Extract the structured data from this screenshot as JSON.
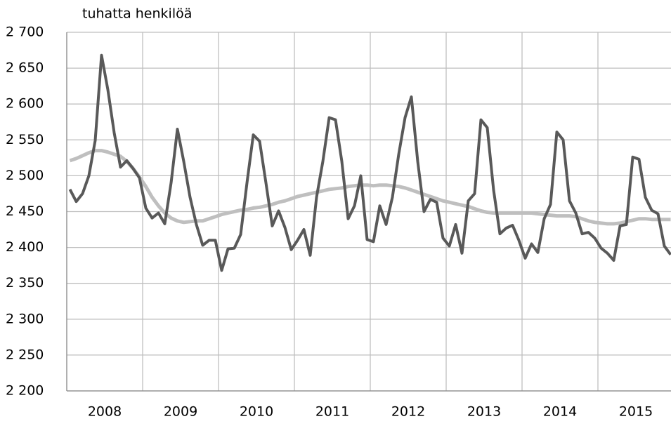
{
  "chart_data": {
    "type": "line",
    "title": "tuhatta henkilöä",
    "categories": [
      null,
      null,
      null,
      null,
      null,
      null,
      "2008",
      null,
      null,
      null,
      null,
      null,
      null,
      null,
      null,
      null,
      null,
      null,
      "2009",
      null,
      null,
      null,
      null,
      null,
      null,
      null,
      null,
      null,
      null,
      null,
      "2010",
      null,
      null,
      null,
      null,
      null,
      null,
      null,
      null,
      null,
      null,
      null,
      "2011",
      null,
      null,
      null,
      null,
      null,
      null,
      null,
      null,
      null,
      null,
      null,
      "2012",
      null,
      null,
      null,
      null,
      null,
      null,
      null,
      null,
      null,
      null,
      null,
      "2013",
      null,
      null,
      null,
      null,
      null,
      null,
      null,
      null,
      null,
      null,
      null,
      "2014",
      null,
      null,
      null,
      null,
      null,
      null,
      null,
      null,
      null,
      null,
      null,
      "2015",
      null,
      null,
      null,
      null,
      null
    ],
    "series": [
      {
        "color": "#595959",
        "values": [
          2481,
          2464,
          2475,
          2500,
          2549,
          2668,
          2620,
          2560,
          2512,
          2521,
          2510,
          2497,
          2455,
          2441,
          2448,
          2433,
          2490,
          2565,
          2520,
          2470,
          2432,
          2403,
          2410,
          2410,
          2368,
          2398,
          2399,
          2418,
          2490,
          2557,
          2548,
          2490,
          2430,
          2451,
          2428,
          2397,
          2410,
          2425,
          2389,
          2470,
          2520,
          2581,
          2578,
          2520,
          2440,
          2458,
          2500,
          2411,
          2408,
          2458,
          2432,
          2470,
          2530,
          2581,
          2610,
          2520,
          2450,
          2467,
          2463,
          2413,
          2402,
          2432,
          2392,
          2465,
          2475,
          2578,
          2567,
          2480,
          2419,
          2427,
          2431,
          2410,
          2385,
          2405,
          2393,
          2440,
          2460,
          2561,
          2550,
          2465,
          2448,
          2419,
          2421,
          2413,
          2399,
          2392,
          2382,
          2430,
          2432,
          2526,
          2523,
          2470,
          2452,
          2447,
          2402,
          2390
        ]
      },
      {
        "color": "#bfbfbf",
        "values": [
          2521,
          2524,
          2528,
          2532,
          2535,
          2535,
          2533,
          2530,
          2527,
          2520,
          2510,
          2498,
          2485,
          2470,
          2458,
          2448,
          2441,
          2437,
          2435,
          2436,
          2437,
          2437,
          2440,
          2443,
          2446,
          2448,
          2450,
          2452,
          2453,
          2455,
          2456,
          2458,
          2460,
          2463,
          2465,
          2468,
          2471,
          2473,
          2475,
          2477,
          2479,
          2481,
          2482,
          2483,
          2485,
          2486,
          2487,
          2487,
          2486,
          2487,
          2487,
          2486,
          2485,
          2483,
          2480,
          2477,
          2474,
          2471,
          2468,
          2465,
          2463,
          2461,
          2459,
          2457,
          2454,
          2451,
          2449,
          2448,
          2448,
          2448,
          2448,
          2448,
          2448,
          2448,
          2447,
          2446,
          2445,
          2444,
          2444,
          2444,
          2443,
          2440,
          2437,
          2435,
          2434,
          2433,
          2433,
          2434,
          2436,
          2438,
          2440,
          2440,
          2439,
          2439,
          2439,
          2439
        ]
      }
    ],
    "ylim": [
      2200,
      2700
    ],
    "yticks": [
      {
        "value": 2200,
        "label": "2 200"
      },
      {
        "value": 2250,
        "label": "2 250"
      },
      {
        "value": 2300,
        "label": "2 300"
      },
      {
        "value": 2350,
        "label": "2 350"
      },
      {
        "value": 2400,
        "label": "2 400"
      },
      {
        "value": 2450,
        "label": "2 450"
      },
      {
        "value": 2500,
        "label": "2 500"
      },
      {
        "value": 2550,
        "label": "2 550"
      },
      {
        "value": 2600,
        "label": "2 600"
      },
      {
        "value": 2650,
        "label": "2 650"
      },
      {
        "value": 2700,
        "label": "2 700"
      }
    ],
    "grid": true
  }
}
